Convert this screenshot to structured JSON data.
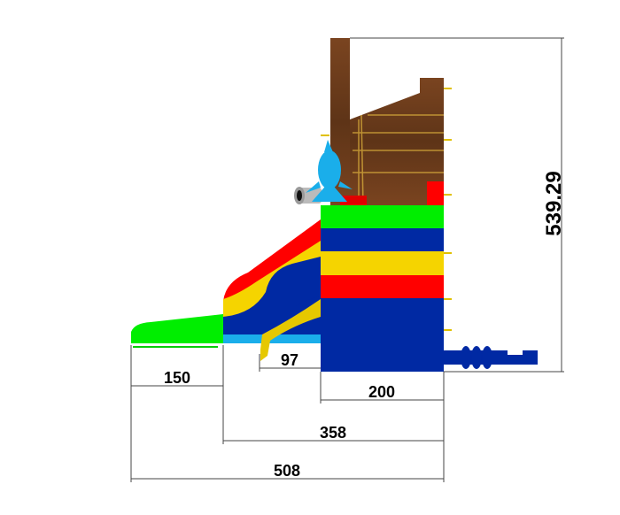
{
  "dimensions": {
    "height": "539.29",
    "runout": "150",
    "slide_gap": "97",
    "tower": "200",
    "slide_to_tower_end": "358",
    "total_length": "508"
  },
  "colors": {
    "green": "#00ee00",
    "blue": "#0029a3",
    "yellow": "#f5d400",
    "red": "#ff0000",
    "wood": "#6b3a1c",
    "dolphin": "#1aaeea"
  },
  "icons": [
    "dolphin-figure",
    "cannon",
    "blower-tube"
  ]
}
